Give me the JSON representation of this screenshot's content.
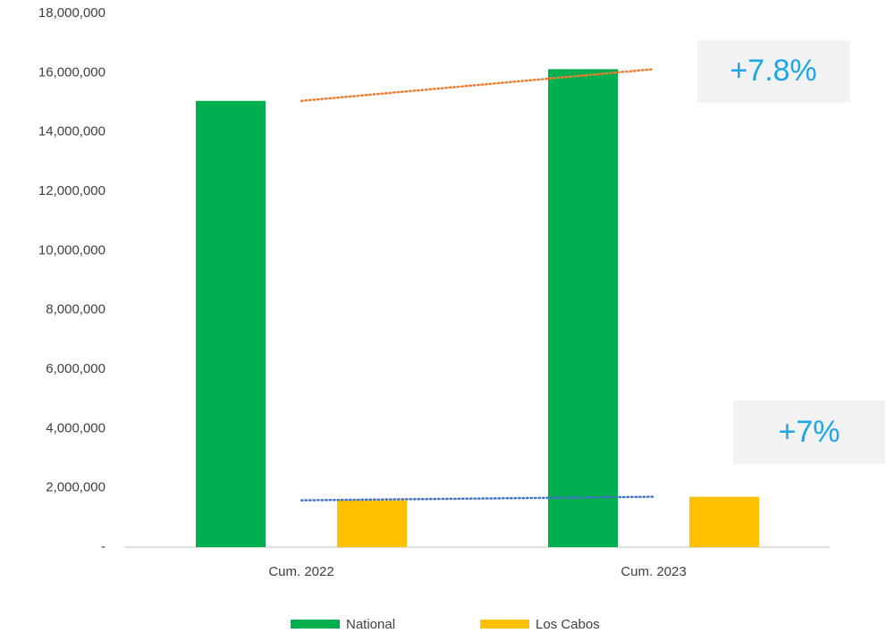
{
  "chart_data": {
    "type": "bar",
    "categories": [
      "Cum. 2022",
      "Cum. 2023"
    ],
    "series": [
      {
        "name": "National",
        "color": "#00b050",
        "trendline_color": "#ed7d31",
        "values": [
          15050000,
          16120000
        ]
      },
      {
        "name": "Los Cabos",
        "color": "#ffc000",
        "trendline_color": "#4472c4",
        "values": [
          1580000,
          1700000
        ]
      }
    ],
    "ylim": [
      0,
      18000000
    ],
    "yticks": [
      {
        "value": 0,
        "label": "-"
      },
      {
        "value": 2000000,
        "label": "2,000,000"
      },
      {
        "value": 4000000,
        "label": "4,000,000"
      },
      {
        "value": 6000000,
        "label": "6,000,000"
      },
      {
        "value": 8000000,
        "label": "8,000,000"
      },
      {
        "value": 10000000,
        "label": "10,000,000"
      },
      {
        "value": 12000000,
        "label": "12,000,000"
      },
      {
        "value": 14000000,
        "label": "14,000,000"
      },
      {
        "value": 16000000,
        "label": "16,000,000"
      },
      {
        "value": 18000000,
        "label": "18,000,000"
      }
    ],
    "annotations": [
      "+7.8%",
      "+7%"
    ],
    "grid": false,
    "legend": "bottom"
  }
}
